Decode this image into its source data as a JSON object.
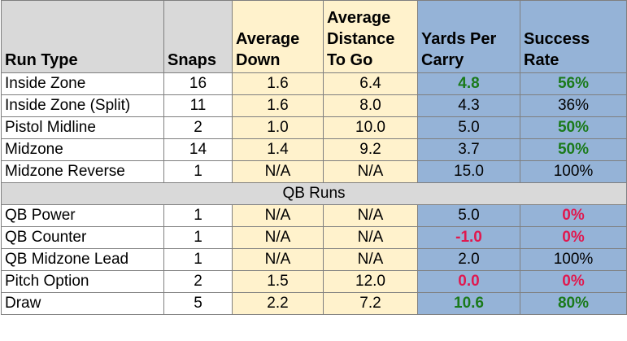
{
  "table": {
    "header": [
      "Run Type",
      "Snaps",
      "Average Down",
      "Average Distance To Go",
      "Yards Per Carry",
      "Success Rate"
    ],
    "rows": [
      [
        "Inside Zone",
        "16",
        "1.6",
        "6.4",
        {
          "text": "4.8",
          "color": "#1a7a1a"
        },
        {
          "text": "56%",
          "color": "#1a7a1a"
        }
      ],
      [
        "Inside Zone (Split)",
        "11",
        "1.6",
        "8.0",
        "4.3",
        "36%"
      ],
      [
        "Pistol Midline",
        "2",
        "1.0",
        "10.0",
        "5.0",
        {
          "text": "50%",
          "color": "#1a7a1a"
        }
      ],
      [
        "Midzone",
        "14",
        "1.4",
        "9.2",
        "3.7",
        {
          "text": "50%",
          "color": "#1a7a1a"
        }
      ],
      [
        "Midzone Reverse",
        "1",
        "N/A",
        "N/A",
        "15.0",
        "100%"
      ]
    ],
    "section": "QB Runs",
    "section_rows": [
      [
        "QB Power",
        "1",
        "N/A",
        "N/A",
        "5.0",
        {
          "text": "0%",
          "color": "#e0194f"
        }
      ],
      [
        "QB Counter",
        "1",
        "N/A",
        "N/A",
        {
          "text": "-1.0",
          "color": "#e0194f"
        },
        {
          "text": "0%",
          "color": "#e0194f"
        }
      ],
      [
        "QB Midzone Lead",
        "1",
        "N/A",
        "N/A",
        "2.0",
        "100%"
      ],
      [
        "Pitch Option",
        "2",
        "1.5",
        "12.0",
        {
          "text": "0.0",
          "color": "#e0194f"
        },
        {
          "text": "0%",
          "color": "#e0194f"
        }
      ],
      [
        "Draw",
        "5",
        "2.2",
        "7.2",
        {
          "text": "10.6",
          "color": "#1a7a1a"
        },
        {
          "text": "80%",
          "color": "#1a7a1a"
        }
      ]
    ]
  }
}
